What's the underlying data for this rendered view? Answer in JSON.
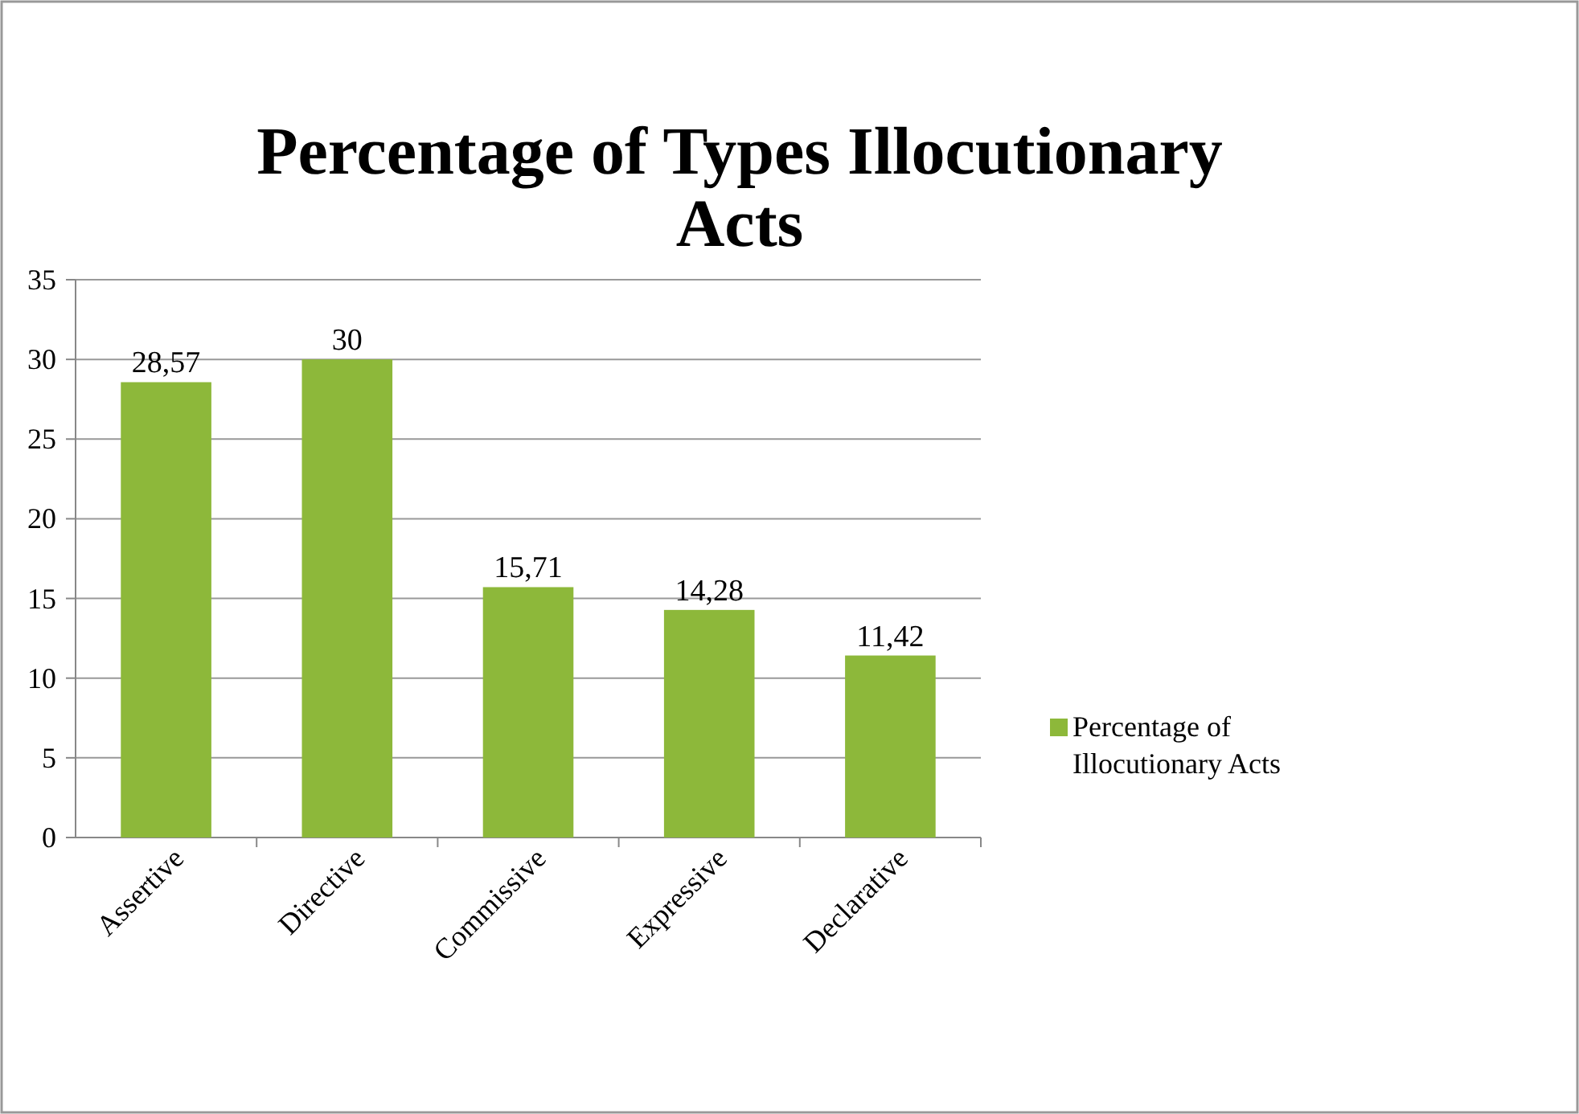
{
  "chart_data": {
    "type": "bar",
    "title": "Percentage of Types Illocutionary Acts",
    "categories": [
      "Assertive",
      "Directive",
      "Commissive",
      "Expressive",
      "Declarative"
    ],
    "series": [
      {
        "name": "Percentage of Illocutionary Acts",
        "color": "#8db83a",
        "values": [
          28.57,
          30,
          15.71,
          14.28,
          11.42
        ]
      }
    ],
    "value_labels": [
      "28,57",
      "30",
      "15,71",
      "14,28",
      "11,42"
    ],
    "ylim": [
      0,
      35
    ],
    "yticks": [
      0,
      5,
      10,
      15,
      20,
      25,
      30,
      35
    ],
    "grid": "y",
    "legend": "right"
  }
}
